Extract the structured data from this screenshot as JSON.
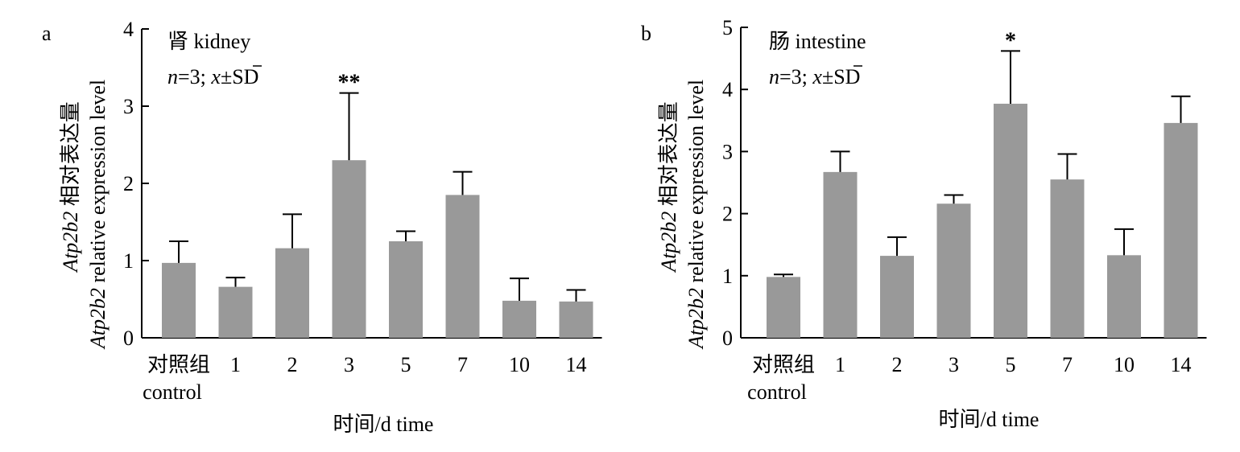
{
  "chart_data": [
    {
      "panel_label": "a",
      "type": "bar",
      "title": "肾 kidney",
      "stats_label": {
        "n": "n",
        "eq": "=3; ",
        "xbar": "x",
        "rest": "±SD"
      },
      "ylabel_cn": {
        "gene": "Atp2b2",
        "text": " 相对表达量"
      },
      "ylabel_en": {
        "gene": "Atp2b2",
        "text": " relative expression level"
      },
      "xlabel": "时间/d time",
      "categories": [
        "对照组",
        "1",
        "2",
        "3",
        "5",
        "7",
        "10",
        "14"
      ],
      "category_sub": "control",
      "values": [
        0.97,
        0.66,
        1.16,
        2.3,
        1.25,
        1.85,
        0.48,
        0.47
      ],
      "errors": [
        0.28,
        0.12,
        0.44,
        0.87,
        0.13,
        0.3,
        0.29,
        0.15
      ],
      "significance": [
        "",
        "",
        "",
        "**",
        "",
        "",
        "",
        ""
      ],
      "ylim": [
        0,
        4
      ],
      "yticks": [
        "0",
        "1",
        "2",
        "3",
        "4"
      ],
      "bar_color": "#999999"
    },
    {
      "panel_label": "b",
      "type": "bar",
      "title": "肠 intestine",
      "stats_label": {
        "n": "n",
        "eq": "=3; ",
        "xbar": "x",
        "rest": "±SD"
      },
      "ylabel_cn": {
        "gene": "Atp2b2",
        "text": " 相对表达量"
      },
      "ylabel_en": {
        "gene": "Atp2b2",
        "text": " relative expression level"
      },
      "xlabel": "时间/d time",
      "categories": [
        "对照组",
        "1",
        "2",
        "3",
        "5",
        "7",
        "10",
        "14"
      ],
      "category_sub": "control",
      "values": [
        0.98,
        2.67,
        1.32,
        2.16,
        3.77,
        2.55,
        1.33,
        3.46
      ],
      "errors": [
        0.04,
        0.33,
        0.3,
        0.14,
        0.85,
        0.41,
        0.42,
        0.43
      ],
      "significance": [
        "",
        "",
        "",
        "",
        "*",
        "",
        "",
        ""
      ],
      "ylim": [
        0,
        5
      ],
      "yticks": [
        "0",
        "1",
        "2",
        "3",
        "4",
        "5"
      ],
      "bar_color": "#999999"
    }
  ]
}
